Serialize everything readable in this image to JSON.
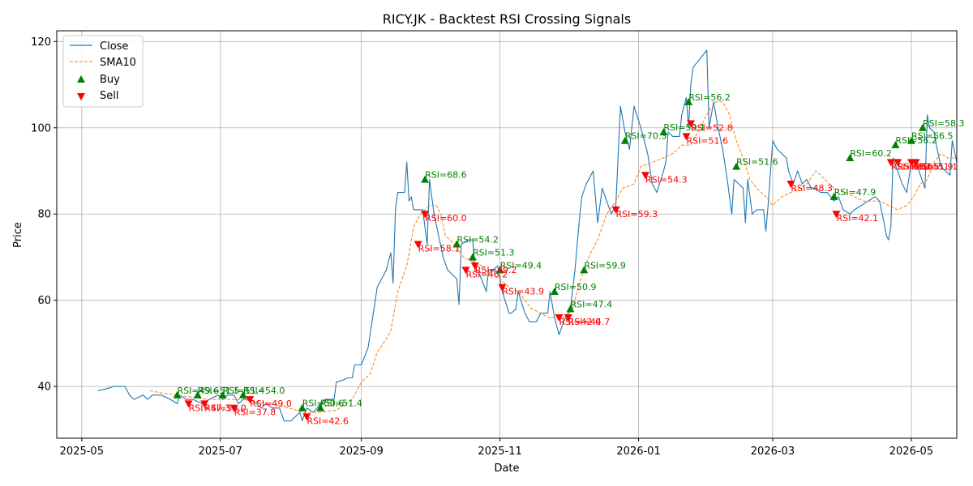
{
  "chart_data": {
    "type": "line",
    "title": "RICY.JK - Backtest RSI Crossing Signals",
    "xlabel": "Date",
    "ylabel": "Price",
    "xlim": [
      "2025-04-20",
      "2026-05-21"
    ],
    "ylim": [
      28,
      122.5
    ],
    "x_ticks": [
      {
        "date": "2025-05-01",
        "label": "2025-05"
      },
      {
        "date": "2025-07-01",
        "label": "2025-07"
      },
      {
        "date": "2025-09-01",
        "label": "2025-09"
      },
      {
        "date": "2025-11-01",
        "label": "2025-11"
      },
      {
        "date": "2026-01-01",
        "label": "2026-01"
      },
      {
        "date": "2026-03-01",
        "label": "2026-03"
      },
      {
        "date": "2026-05-01",
        "label": "2026-05"
      }
    ],
    "y_ticks": [
      40,
      60,
      80,
      100,
      120
    ],
    "grid": true,
    "legend_position": "top-left",
    "legend": [
      {
        "label": "Close",
        "style": "line",
        "color": "#1f77b4"
      },
      {
        "label": "SMA10",
        "style": "dashed",
        "color": "#ff7f0e"
      },
      {
        "label": "Buy",
        "style": "triangle-up",
        "color": "#008000"
      },
      {
        "label": "Sell",
        "style": "triangle-down",
        "color": "#ff0000"
      }
    ],
    "colors": {
      "close": "#1f77b4",
      "sma": "#ff7f0e",
      "buy": "#008000",
      "sell": "#ff0000"
    },
    "close": [
      [
        "2025-05-08",
        39
      ],
      [
        "2025-05-12",
        39.5
      ],
      [
        "2025-05-15",
        40
      ],
      [
        "2025-05-20",
        40
      ],
      [
        "2025-05-22",
        38
      ],
      [
        "2025-05-24",
        37
      ],
      [
        "2025-05-28",
        38
      ],
      [
        "2025-05-30",
        37
      ],
      [
        "2025-06-01",
        38
      ],
      [
        "2025-06-05",
        38
      ],
      [
        "2025-06-09",
        37
      ],
      [
        "2025-06-12",
        36
      ],
      [
        "2025-06-13",
        38
      ],
      [
        "2025-06-16",
        37
      ],
      [
        "2025-06-19",
        37
      ],
      [
        "2025-06-23",
        36
      ],
      [
        "2025-06-26",
        37
      ],
      [
        "2025-06-30",
        38
      ],
      [
        "2025-07-02",
        37
      ],
      [
        "2025-07-04",
        38
      ],
      [
        "2025-07-07",
        38
      ],
      [
        "2025-07-09",
        36
      ],
      [
        "2025-07-11",
        37
      ],
      [
        "2025-07-14",
        37
      ],
      [
        "2025-07-17",
        36
      ],
      [
        "2025-07-19",
        35
      ],
      [
        "2025-07-21",
        36
      ],
      [
        "2025-07-24",
        35
      ],
      [
        "2025-07-27",
        35
      ],
      [
        "2025-07-29",
        32
      ],
      [
        "2025-08-01",
        32
      ],
      [
        "2025-08-05",
        34
      ],
      [
        "2025-08-06",
        32
      ],
      [
        "2025-08-08",
        35
      ],
      [
        "2025-08-11",
        34
      ],
      [
        "2025-08-14",
        36
      ],
      [
        "2025-08-16",
        37
      ],
      [
        "2025-08-20",
        37
      ],
      [
        "2025-08-21",
        41
      ],
      [
        "2025-08-24",
        41.5
      ],
      [
        "2025-08-26",
        42
      ],
      [
        "2025-08-28",
        42
      ],
      [
        "2025-08-29",
        45
      ],
      [
        "2025-09-01",
        45
      ],
      [
        "2025-09-04",
        49
      ],
      [
        "2025-09-06",
        56
      ],
      [
        "2025-09-08",
        63
      ],
      [
        "2025-09-12",
        67
      ],
      [
        "2025-09-14",
        71
      ],
      [
        "2025-09-15",
        64
      ],
      [
        "2025-09-16",
        81
      ],
      [
        "2025-09-17",
        85
      ],
      [
        "2025-09-20",
        85
      ],
      [
        "2025-09-21",
        92
      ],
      [
        "2025-09-22",
        83
      ],
      [
        "2025-09-23",
        84
      ],
      [
        "2025-09-24",
        81
      ],
      [
        "2025-09-28",
        81
      ],
      [
        "2025-09-30",
        73
      ],
      [
        "2025-10-01",
        88
      ],
      [
        "2025-10-03",
        80
      ],
      [
        "2025-10-05",
        75
      ],
      [
        "2025-10-07",
        70
      ],
      [
        "2025-10-09",
        67
      ],
      [
        "2025-10-13",
        65
      ],
      [
        "2025-10-14",
        59
      ],
      [
        "2025-10-15",
        73
      ],
      [
        "2025-10-18",
        74
      ],
      [
        "2025-10-20",
        74
      ],
      [
        "2025-10-21",
        67
      ],
      [
        "2025-10-23",
        66
      ],
      [
        "2025-10-26",
        62
      ],
      [
        "2025-10-27",
        67
      ],
      [
        "2025-10-29",
        67
      ],
      [
        "2025-10-31",
        68
      ],
      [
        "2025-11-02",
        62
      ],
      [
        "2025-11-05",
        57
      ],
      [
        "2025-11-06",
        57
      ],
      [
        "2025-11-08",
        58
      ],
      [
        "2025-11-09",
        62
      ],
      [
        "2025-11-12",
        57
      ],
      [
        "2025-11-14",
        55
      ],
      [
        "2025-11-17",
        55
      ],
      [
        "2025-11-19",
        57
      ],
      [
        "2025-11-22",
        57
      ],
      [
        "2025-11-23",
        62
      ],
      [
        "2025-11-25",
        56
      ],
      [
        "2025-11-27",
        52
      ],
      [
        "2025-11-29",
        55
      ],
      [
        "2025-12-02",
        58
      ],
      [
        "2025-12-04",
        67
      ],
      [
        "2025-12-06",
        79
      ],
      [
        "2025-12-07",
        84
      ],
      [
        "2025-12-09",
        87
      ],
      [
        "2025-12-12",
        90
      ],
      [
        "2025-12-14",
        78
      ],
      [
        "2025-12-16",
        86
      ],
      [
        "2025-12-18",
        83
      ],
      [
        "2025-12-20",
        80
      ],
      [
        "2025-12-22",
        82
      ],
      [
        "2025-12-24",
        105
      ],
      [
        "2025-12-26",
        99
      ],
      [
        "2025-12-28",
        95
      ],
      [
        "2025-12-30",
        105
      ],
      [
        "2026-01-02",
        100
      ],
      [
        "2026-01-05",
        94
      ],
      [
        "2026-01-07",
        87
      ],
      [
        "2026-01-09",
        85
      ],
      [
        "2026-01-12",
        90
      ],
      [
        "2026-01-13",
        92
      ],
      [
        "2026-01-14",
        99
      ],
      [
        "2026-01-16",
        98
      ],
      [
        "2026-01-19",
        98
      ],
      [
        "2026-01-20",
        103
      ],
      [
        "2026-01-22",
        107
      ],
      [
        "2026-01-23",
        100
      ],
      [
        "2026-01-24",
        110
      ],
      [
        "2026-01-25",
        114
      ],
      [
        "2026-01-28",
        116
      ],
      [
        "2026-01-31",
        118
      ],
      [
        "2026-02-01",
        100
      ],
      [
        "2026-02-03",
        106
      ],
      [
        "2026-02-05",
        100
      ],
      [
        "2026-02-07",
        95
      ],
      [
        "2026-02-09",
        88
      ],
      [
        "2026-02-11",
        80
      ],
      [
        "2026-02-12",
        88
      ],
      [
        "2026-02-14",
        87
      ],
      [
        "2026-02-16",
        86
      ],
      [
        "2026-02-17",
        78
      ],
      [
        "2026-02-18",
        88
      ],
      [
        "2026-02-20",
        80
      ],
      [
        "2026-02-22",
        81
      ],
      [
        "2026-02-25",
        81
      ],
      [
        "2026-02-26",
        76
      ],
      [
        "2026-02-27",
        82
      ],
      [
        "2026-03-01",
        97
      ],
      [
        "2026-03-03",
        95
      ],
      [
        "2026-03-05",
        94
      ],
      [
        "2026-03-07",
        93
      ],
      [
        "2026-03-08",
        90
      ],
      [
        "2026-03-10",
        87
      ],
      [
        "2026-03-12",
        90
      ],
      [
        "2026-03-14",
        87
      ],
      [
        "2026-03-16",
        88
      ],
      [
        "2026-03-18",
        86
      ],
      [
        "2026-03-20",
        86
      ],
      [
        "2026-03-22",
        85
      ],
      [
        "2026-03-25",
        85
      ],
      [
        "2026-03-28",
        83
      ],
      [
        "2026-03-30",
        84
      ],
      [
        "2026-04-01",
        81
      ],
      [
        "2026-04-04",
        80
      ],
      [
        "2026-04-06",
        81
      ],
      [
        "2026-04-09",
        82
      ],
      [
        "2026-04-12",
        83
      ],
      [
        "2026-04-15",
        84
      ],
      [
        "2026-04-17",
        83
      ],
      [
        "2026-04-19",
        78
      ],
      [
        "2026-04-20",
        75
      ],
      [
        "2026-04-21",
        74
      ],
      [
        "2026-04-22",
        77
      ],
      [
        "2026-04-23",
        93
      ],
      [
        "2026-04-25",
        90
      ],
      [
        "2026-04-27",
        87
      ],
      [
        "2026-04-29",
        85
      ],
      [
        "2026-05-01",
        92
      ],
      [
        "2026-05-03",
        92
      ],
      [
        "2026-05-05",
        89
      ],
      [
        "2026-05-07",
        86
      ],
      [
        "2026-05-08",
        103
      ],
      [
        "2026-05-09",
        100
      ],
      [
        "2026-05-11",
        99
      ],
      [
        "2026-05-12",
        96
      ],
      [
        "2026-05-14",
        91
      ],
      [
        "2026-05-16",
        90
      ],
      [
        "2026-05-18",
        89
      ],
      [
        "2026-05-19",
        97
      ],
      [
        "2026-05-21",
        92
      ]
    ],
    "sma10": [
      [
        "2025-05-31",
        39
      ],
      [
        "2025-06-05",
        38.5
      ],
      [
        "2025-06-12",
        38
      ],
      [
        "2025-06-19",
        37.5
      ],
      [
        "2025-06-26",
        37
      ],
      [
        "2025-07-03",
        37
      ],
      [
        "2025-07-10",
        37
      ],
      [
        "2025-07-17",
        36.5
      ],
      [
        "2025-07-24",
        36
      ],
      [
        "2025-07-31",
        35
      ],
      [
        "2025-08-07",
        34
      ],
      [
        "2025-08-14",
        34
      ],
      [
        "2025-08-21",
        34.5
      ],
      [
        "2025-08-28",
        37
      ],
      [
        "2025-09-01",
        41
      ],
      [
        "2025-09-05",
        43
      ],
      [
        "2025-09-08",
        48
      ],
      [
        "2025-09-12",
        51
      ],
      [
        "2025-09-14",
        53
      ],
      [
        "2025-09-17",
        62
      ],
      [
        "2025-09-21",
        68
      ],
      [
        "2025-09-24",
        77
      ],
      [
        "2025-09-27",
        80
      ],
      [
        "2025-10-01",
        82
      ],
      [
        "2025-10-04",
        82
      ],
      [
        "2025-10-06",
        80
      ],
      [
        "2025-10-08",
        75
      ],
      [
        "2025-10-12",
        73
      ],
      [
        "2025-10-16",
        70
      ],
      [
        "2025-10-20",
        69
      ],
      [
        "2025-10-24",
        68
      ],
      [
        "2025-10-28",
        66
      ],
      [
        "2025-11-01",
        65
      ],
      [
        "2025-11-05",
        63
      ],
      [
        "2025-11-09",
        62
      ],
      [
        "2025-11-12",
        60
      ],
      [
        "2025-11-15",
        58
      ],
      [
        "2025-11-19",
        57
      ],
      [
        "2025-11-22",
        56
      ],
      [
        "2025-11-26",
        56
      ],
      [
        "2025-11-30",
        56
      ],
      [
        "2025-12-03",
        58
      ],
      [
        "2025-12-06",
        64
      ],
      [
        "2025-12-10",
        70
      ],
      [
        "2025-12-14",
        74
      ],
      [
        "2025-12-18",
        80
      ],
      [
        "2025-12-22",
        83
      ],
      [
        "2025-12-25",
        86
      ],
      [
        "2025-12-30",
        87
      ],
      [
        "2026-01-02",
        91
      ],
      [
        "2026-01-07",
        92
      ],
      [
        "2026-01-12",
        93
      ],
      [
        "2026-01-16",
        94
      ],
      [
        "2026-01-20",
        96
      ],
      [
        "2026-01-24",
        96
      ],
      [
        "2026-01-28",
        100
      ],
      [
        "2026-02-01",
        104
      ],
      [
        "2026-02-04",
        106
      ],
      [
        "2026-02-07",
        106
      ],
      [
        "2026-02-10",
        103
      ],
      [
        "2026-02-13",
        97
      ],
      [
        "2026-02-16",
        93
      ],
      [
        "2026-02-19",
        88
      ],
      [
        "2026-02-22",
        86
      ],
      [
        "2026-02-26",
        84
      ],
      [
        "2026-03-01",
        82
      ],
      [
        "2026-03-05",
        84
      ],
      [
        "2026-03-09",
        85
      ],
      [
        "2026-03-13",
        86
      ],
      [
        "2026-03-16",
        87
      ],
      [
        "2026-03-20",
        90
      ],
      [
        "2026-03-24",
        88
      ],
      [
        "2026-03-28",
        86
      ],
      [
        "2026-04-02",
        85
      ],
      [
        "2026-04-06",
        84
      ],
      [
        "2026-04-10",
        83
      ],
      [
        "2026-04-14",
        83
      ],
      [
        "2026-04-17",
        83
      ],
      [
        "2026-04-21",
        82
      ],
      [
        "2026-04-25",
        81
      ],
      [
        "2026-04-29",
        82
      ],
      [
        "2026-05-02",
        84
      ],
      [
        "2026-05-05",
        87
      ],
      [
        "2026-05-08",
        88
      ],
      [
        "2026-05-11",
        92
      ],
      [
        "2026-05-14",
        94
      ],
      [
        "2026-05-17",
        93
      ],
      [
        "2026-05-20",
        93
      ]
    ],
    "buy_signals": [
      {
        "x": "2025-06-12",
        "y": 38,
        "label": "RSI=49.6"
      },
      {
        "x": "2025-06-21",
        "y": 38,
        "label": "RSI=51.5"
      },
      {
        "x": "2025-07-02",
        "y": 38,
        "label": "RSI=51.4"
      },
      {
        "x": "2025-07-11",
        "y": 38,
        "label": "RSI=54.0"
      },
      {
        "x": "2025-08-06",
        "y": 35,
        "label": "RSI=50.6"
      },
      {
        "x": "2025-08-14",
        "y": 35,
        "label": "RSI=51.4"
      },
      {
        "x": "2025-09-29",
        "y": 88,
        "label": "RSI=68.6"
      },
      {
        "x": "2025-10-13",
        "y": 73,
        "label": "RSI=54.2"
      },
      {
        "x": "2025-10-20",
        "y": 70,
        "label": "RSI=51.3"
      },
      {
        "x": "2025-11-01",
        "y": 67,
        "label": "RSI=49.4"
      },
      {
        "x": "2025-11-25",
        "y": 62,
        "label": "RSI=50.9"
      },
      {
        "x": "2025-12-02",
        "y": 58,
        "label": "RSI=47.4"
      },
      {
        "x": "2025-12-08",
        "y": 67,
        "label": "RSI=59.9"
      },
      {
        "x": "2025-12-26",
        "y": 97,
        "label": "RSI=70.3"
      },
      {
        "x": "2026-01-12",
        "y": 99,
        "label": "RSI=59.1"
      },
      {
        "x": "2026-01-23",
        "y": 106,
        "label": "RSI=56.2"
      },
      {
        "x": "2026-02-13",
        "y": 91,
        "label": "RSI=51.6"
      },
      {
        "x": "2026-03-28",
        "y": 84,
        "label": "RSI=47.9"
      },
      {
        "x": "2026-04-04",
        "y": 93,
        "label": "RSI=60.2"
      },
      {
        "x": "2026-04-24",
        "y": 96,
        "label": "RSI=56.2"
      },
      {
        "x": "2026-05-01",
        "y": 97,
        "label": "RSI=56.5"
      },
      {
        "x": "2026-05-06",
        "y": 100,
        "label": "RSI=58.3"
      }
    ],
    "sell_signals": [
      {
        "x": "2025-06-17",
        "y": 36,
        "label": "RSI=47.3"
      },
      {
        "x": "2025-06-24",
        "y": 36,
        "label": "RSI=50.0"
      },
      {
        "x": "2025-07-07",
        "y": 35,
        "label": "RSI=37.8"
      },
      {
        "x": "2025-07-14",
        "y": 37,
        "label": "RSI=49.0"
      },
      {
        "x": "2025-08-08",
        "y": 33,
        "label": "RSI=42.6"
      },
      {
        "x": "2025-09-26",
        "y": 73,
        "label": "RSI=58.1"
      },
      {
        "x": "2025-09-29",
        "y": 80,
        "label": "RSI=60.0"
      },
      {
        "x": "2025-10-17",
        "y": 67,
        "label": "RSI=46.2"
      },
      {
        "x": "2025-10-21",
        "y": 68,
        "label": "RSI=49.2"
      },
      {
        "x": "2025-11-02",
        "y": 63,
        "label": "RSI=43.9"
      },
      {
        "x": "2025-11-27",
        "y": 56,
        "label": "RSI=42.0"
      },
      {
        "x": "2025-12-01",
        "y": 56,
        "label": "RSI=44.7"
      },
      {
        "x": "2025-12-22",
        "y": 81,
        "label": "RSI=59.3"
      },
      {
        "x": "2026-01-04",
        "y": 89,
        "label": "RSI=54.3"
      },
      {
        "x": "2026-01-22",
        "y": 98,
        "label": "RSI=51.6"
      },
      {
        "x": "2026-01-24",
        "y": 101,
        "label": "RSI=52.8"
      },
      {
        "x": "2026-03-09",
        "y": 87,
        "label": "RSI=48.3"
      },
      {
        "x": "2026-03-29",
        "y": 80,
        "label": "RSI=42.1"
      },
      {
        "x": "2026-04-22",
        "y": 92,
        "label": "RSI=52.0"
      },
      {
        "x": "2026-04-25",
        "y": 92,
        "label": "RSI=52.5"
      },
      {
        "x": "2026-05-01",
        "y": 92,
        "label": "RSI=51.9"
      },
      {
        "x": "2026-05-03",
        "y": 92,
        "label": "RSI=51.1"
      }
    ]
  }
}
